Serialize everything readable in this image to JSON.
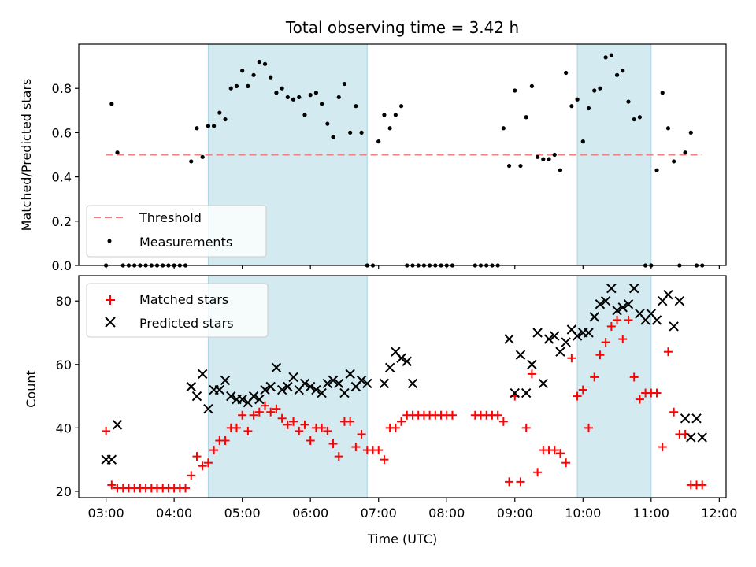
{
  "chart_data": [
    {
      "type": "scatter",
      "title": "Total observing time = 3.42 h",
      "xlabel": "",
      "ylabel": "Matched/Predicted stars",
      "ylim": [
        0,
        1.0
      ],
      "xlim_hours": [
        2.6,
        12.1
      ],
      "yticks": [
        0.0,
        0.2,
        0.4,
        0.6,
        0.8
      ],
      "ytick_labels": [
        "0.0",
        "0.2",
        "0.4",
        "0.6",
        "0.8"
      ],
      "grid": false,
      "legend_position": "lower-left",
      "shaded_intervals": [
        [
          "04:30",
          "06:50"
        ],
        [
          "09:55",
          "11:00"
        ]
      ],
      "shade_color": "#a8d5e2",
      "series": [
        {
          "name": "Threshold",
          "kind": "dashed-line",
          "color": "#f08080",
          "x": [
            "03:00",
            "11:45"
          ],
          "y": [
            0.5,
            0.5
          ]
        },
        {
          "name": "Measurements",
          "kind": "points",
          "color": "#000000",
          "x": [
            "03:00",
            "03:05",
            "03:10",
            "03:15",
            "03:20",
            "03:25",
            "03:30",
            "03:35",
            "03:40",
            "03:45",
            "03:50",
            "03:55",
            "04:00",
            "04:05",
            "04:10",
            "04:15",
            "04:20",
            "04:25",
            "04:30",
            "04:35",
            "04:40",
            "04:45",
            "04:50",
            "04:55",
            "05:00",
            "05:05",
            "05:10",
            "05:15",
            "05:20",
            "05:25",
            "05:30",
            "05:35",
            "05:40",
            "05:45",
            "05:50",
            "05:55",
            "06:00",
            "06:05",
            "06:10",
            "06:15",
            "06:20",
            "06:25",
            "06:30",
            "06:35",
            "06:40",
            "06:45",
            "06:50",
            "06:55",
            "07:00",
            "07:05",
            "07:10",
            "07:15",
            "07:20",
            "07:25",
            "07:30",
            "07:35",
            "07:40",
            "07:45",
            "07:50",
            "07:55",
            "08:00",
            "08:05",
            "08:25",
            "08:30",
            "08:35",
            "08:40",
            "08:45",
            "08:50",
            "08:55",
            "09:00",
            "09:05",
            "09:10",
            "09:15",
            "09:20",
            "09:25",
            "09:30",
            "09:35",
            "09:40",
            "09:45",
            "09:50",
            "09:55",
            "10:00",
            "10:05",
            "10:10",
            "10:15",
            "10:20",
            "10:25",
            "10:30",
            "10:35",
            "10:40",
            "10:45",
            "10:50",
            "10:55",
            "11:00",
            "11:05",
            "11:10",
            "11:15",
            "11:20",
            "11:25",
            "11:30",
            "11:35",
            "11:40",
            "11:45"
          ],
          "y": [
            0.0,
            0.73,
            0.51,
            0.0,
            0.0,
            0.0,
            0.0,
            0.0,
            0.0,
            0.0,
            0.0,
            0.0,
            0.0,
            0.0,
            0.0,
            0.47,
            0.62,
            0.49,
            0.63,
            0.63,
            0.69,
            0.66,
            0.8,
            0.81,
            0.88,
            0.81,
            0.86,
            0.92,
            0.91,
            0.85,
            0.78,
            0.8,
            0.76,
            0.75,
            0.76,
            0.68,
            0.77,
            0.78,
            0.73,
            0.64,
            0.58,
            0.76,
            0.82,
            0.6,
            0.72,
            0.6,
            0.0,
            0.0,
            0.56,
            0.68,
            0.62,
            0.68,
            0.72,
            0.0,
            0.0,
            0.0,
            0.0,
            0.0,
            0.0,
            0.0,
            0.0,
            0.0,
            0.0,
            0.0,
            0.0,
            0.0,
            0.0,
            0.62,
            0.45,
            0.79,
            0.45,
            0.67,
            0.81,
            0.49,
            0.48,
            0.48,
            0.5,
            0.43,
            0.87,
            0.72,
            0.75,
            0.56,
            0.71,
            0.79,
            0.8,
            0.94,
            0.95,
            0.86,
            0.88,
            0.74,
            0.66,
            0.67,
            0.0,
            0.0,
            0.43,
            0.78,
            0.62,
            0.47,
            0.0,
            0.51,
            0.6,
            0.0,
            0.0
          ]
        }
      ]
    },
    {
      "type": "scatter",
      "title": "",
      "xlabel": "Time (UTC)",
      "ylabel": "Count",
      "ylim": [
        18,
        88
      ],
      "xlim_hours": [
        2.6,
        12.1
      ],
      "yticks": [
        20,
        40,
        60,
        80
      ],
      "ytick_labels": [
        "20",
        "40",
        "60",
        "80"
      ],
      "xtick_labels": [
        "03:00",
        "04:00",
        "05:00",
        "06:00",
        "07:00",
        "08:00",
        "09:00",
        "10:00",
        "11:00",
        "12:00"
      ],
      "grid": false,
      "legend_position": "top-left",
      "shaded_intervals": [
        [
          "04:30",
          "06:50"
        ],
        [
          "09:55",
          "11:00"
        ]
      ],
      "shade_color": "#a8d5e2",
      "series": [
        {
          "name": "Matched stars",
          "kind": "plus",
          "color": "#ff0000",
          "x": [
            "03:00",
            "03:05",
            "03:10",
            "03:15",
            "03:20",
            "03:25",
            "03:30",
            "03:35",
            "03:40",
            "03:45",
            "03:50",
            "03:55",
            "04:00",
            "04:05",
            "04:10",
            "04:15",
            "04:20",
            "04:25",
            "04:30",
            "04:35",
            "04:40",
            "04:45",
            "04:50",
            "04:55",
            "05:00",
            "05:05",
            "05:10",
            "05:15",
            "05:20",
            "05:25",
            "05:30",
            "05:35",
            "05:40",
            "05:45",
            "05:50",
            "05:55",
            "06:00",
            "06:05",
            "06:10",
            "06:15",
            "06:20",
            "06:25",
            "06:30",
            "06:35",
            "06:40",
            "06:45",
            "06:50",
            "06:55",
            "07:00",
            "07:05",
            "07:10",
            "07:15",
            "07:20",
            "07:25",
            "07:30",
            "07:35",
            "07:40",
            "07:45",
            "07:50",
            "07:55",
            "08:00",
            "08:05",
            "08:25",
            "08:30",
            "08:35",
            "08:40",
            "08:45",
            "08:50",
            "08:55",
            "09:00",
            "09:05",
            "09:10",
            "09:15",
            "09:20",
            "09:25",
            "09:30",
            "09:35",
            "09:40",
            "09:45",
            "09:50",
            "09:55",
            "10:00",
            "10:05",
            "10:10",
            "10:15",
            "10:20",
            "10:25",
            "10:30",
            "10:35",
            "10:40",
            "10:45",
            "10:50",
            "10:55",
            "11:00",
            "11:05",
            "11:10",
            "11:15",
            "11:20",
            "11:25",
            "11:30",
            "11:35",
            "11:40",
            "11:45"
          ],
          "y": [
            39,
            22,
            21,
            21,
            21,
            21,
            21,
            21,
            21,
            21,
            21,
            21,
            21,
            21,
            21,
            25,
            31,
            28,
            29,
            33,
            36,
            36,
            40,
            40,
            44,
            39,
            44,
            45,
            47,
            45,
            46,
            43,
            41,
            42,
            39,
            41,
            36,
            40,
            40,
            39,
            35,
            31,
            42,
            42,
            34,
            38,
            33,
            33,
            33,
            30,
            40,
            40,
            42,
            44,
            44,
            44,
            44,
            44,
            44,
            44,
            44,
            44,
            44,
            44,
            44,
            44,
            44,
            42,
            23,
            50,
            23,
            40,
            57,
            26,
            33,
            33,
            33,
            32,
            29,
            62,
            50,
            52,
            40,
            56,
            63,
            67,
            72,
            74,
            68,
            74,
            56,
            49,
            51,
            51,
            51,
            34,
            64,
            45,
            38,
            38,
            22,
            22,
            22
          ]
        },
        {
          "name": "Predicted stars",
          "kind": "x",
          "color": "#000000",
          "x": [
            "03:00",
            "03:05",
            "03:10",
            "04:15",
            "04:20",
            "04:25",
            "04:30",
            "04:35",
            "04:40",
            "04:45",
            "04:50",
            "04:55",
            "05:00",
            "05:05",
            "05:10",
            "05:15",
            "05:20",
            "05:25",
            "05:30",
            "05:35",
            "05:40",
            "05:45",
            "05:50",
            "05:55",
            "06:00",
            "06:05",
            "06:10",
            "06:15",
            "06:20",
            "06:25",
            "06:30",
            "06:35",
            "06:40",
            "06:45",
            "06:50",
            "07:05",
            "07:10",
            "07:15",
            "07:20",
            "07:25",
            "07:30",
            "08:55",
            "09:00",
            "09:05",
            "09:10",
            "09:15",
            "09:20",
            "09:25",
            "09:30",
            "09:35",
            "09:40",
            "09:45",
            "09:50",
            "09:55",
            "10:00",
            "10:05",
            "10:10",
            "10:15",
            "10:20",
            "10:25",
            "10:30",
            "10:35",
            "10:40",
            "10:45",
            "10:50",
            "10:55",
            "11:00",
            "11:05",
            "11:10",
            "11:15",
            "11:20",
            "11:25",
            "11:30",
            "11:35",
            "11:40",
            "11:45"
          ],
          "y": [
            30,
            30,
            41,
            53,
            50,
            57,
            46,
            52,
            52,
            55,
            50,
            49,
            49,
            48,
            50,
            49,
            52,
            53,
            59,
            52,
            53,
            56,
            52,
            54,
            53,
            52,
            51,
            54,
            55,
            54,
            51,
            57,
            53,
            55,
            54,
            54,
            59,
            64,
            62,
            61,
            54,
            68,
            51,
            63,
            51,
            60,
            70,
            54,
            68,
            69,
            64,
            67,
            71,
            69,
            70,
            70,
            75,
            79,
            80,
            84,
            77,
            78,
            79,
            84,
            76,
            74,
            76,
            74,
            80,
            82,
            72,
            80,
            43,
            37,
            43,
            37
          ]
        }
      ]
    }
  ]
}
